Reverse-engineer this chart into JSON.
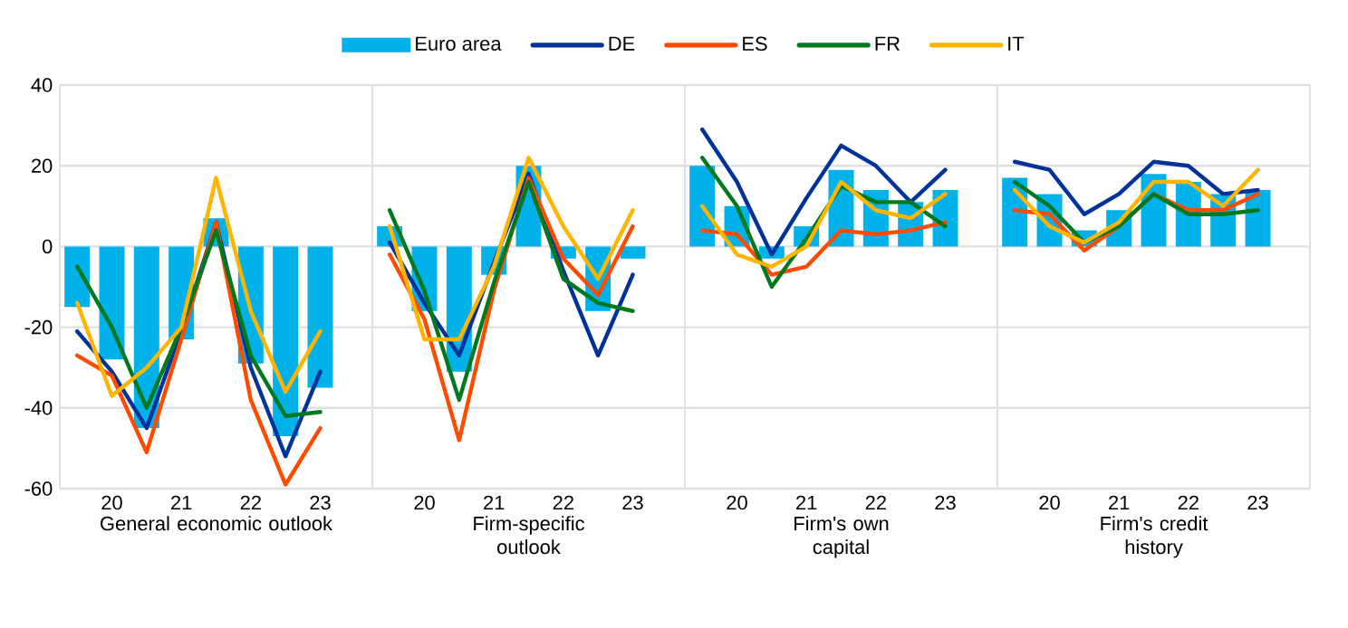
{
  "chart_data": [
    {
      "type": "bar",
      "categories": [
        null,
        "20",
        null,
        "21",
        null,
        "22",
        null,
        "23"
      ],
      "xlabel": "General economic outlook",
      "ylim": [
        -60,
        40
      ],
      "yticks": [
        -60,
        -40,
        -20,
        0,
        20,
        40
      ],
      "grid": "y",
      "legend": "top",
      "series": [
        {
          "name": "Euro area",
          "color": "#00b1ea",
          "values": [
            -15,
            -28,
            -45,
            -23,
            7,
            -29,
            -47,
            -35
          ]
        },
        {
          "name": "DE",
          "type": "line",
          "color": "#003299",
          "values": [
            -21,
            -31,
            -45,
            -21,
            6,
            -30,
            -52,
            -31
          ]
        },
        {
          "name": "ES",
          "type": "line",
          "color": "#ff4b00",
          "values": [
            -27,
            -32,
            -51,
            -23,
            6,
            -38,
            -59,
            -45
          ]
        },
        {
          "name": "FR",
          "type": "line",
          "color": "#00781e",
          "values": [
            -5,
            -20,
            -40,
            -20,
            4,
            -27,
            -42,
            -41
          ]
        },
        {
          "name": "IT",
          "type": "line",
          "color": "#ffb400",
          "values": [
            -14,
            -37,
            -30,
            -20,
            17,
            -16,
            -36,
            -21
          ]
        }
      ]
    },
    {
      "type": "bar",
      "categories": [
        null,
        "20",
        null,
        "21",
        null,
        "22",
        null,
        "23"
      ],
      "xlabel": "Firm-specific outlook",
      "ylim": [
        -60,
        40
      ],
      "yticks": [
        -60,
        -40,
        -20,
        0,
        20,
        40
      ],
      "grid": "y",
      "tick_labels": "x",
      "series": [
        {
          "color": "#00b1ea",
          "values": [
            5,
            -16,
            -31,
            -7,
            20,
            -3,
            -16,
            -3
          ]
        },
        {
          "type": "line",
          "color": "#003299",
          "values": [
            1,
            -14,
            -27,
            -4,
            18,
            -6,
            -27,
            -7
          ]
        },
        {
          "type": "line",
          "color": "#ff4b00",
          "values": [
            -2,
            -18,
            -48,
            -11,
            17,
            -3,
            -12,
            5
          ]
        },
        {
          "type": "line",
          "color": "#00781e",
          "values": [
            9,
            -11,
            -38,
            -9,
            16,
            -8,
            -14,
            -16
          ]
        },
        {
          "type": "line",
          "color": "#ffb400",
          "values": [
            5,
            -23,
            -23,
            -5,
            22,
            5,
            -8,
            9
          ]
        }
      ]
    },
    {
      "type": "bar",
      "categories": [
        null,
        "20",
        null,
        "21",
        null,
        "22",
        null,
        "23"
      ],
      "xlabel": "Firm's own capital",
      "ylim": [
        -60,
        40
      ],
      "yticks": [
        -60,
        -40,
        -20,
        0,
        20,
        40
      ],
      "grid": "y",
      "tick_labels": "x",
      "series": [
        {
          "color": "#00b1ea",
          "values": [
            20,
            10,
            -3,
            5,
            19,
            14,
            11,
            14
          ]
        },
        {
          "type": "line",
          "color": "#003299",
          "values": [
            29,
            16,
            -2,
            12,
            25,
            20,
            11,
            19
          ]
        },
        {
          "type": "line",
          "color": "#ff4b00",
          "values": [
            4,
            3,
            -7,
            -5,
            4,
            3,
            4,
            6
          ]
        },
        {
          "type": "line",
          "color": "#00781e",
          "values": [
            22,
            10,
            -10,
            2,
            15,
            11,
            11,
            5
          ]
        },
        {
          "type": "line",
          "color": "#ffb400",
          "values": [
            10,
            -2,
            -5,
            0,
            16,
            9,
            7,
            13
          ]
        }
      ]
    },
    {
      "type": "bar",
      "categories": [
        null,
        "20",
        null,
        "21",
        null,
        "22",
        null,
        "23"
      ],
      "xlabel": "Firm's credit history",
      "ylim": [
        -60,
        40
      ],
      "yticks": [
        -60,
        -40,
        -20,
        0,
        20,
        40
      ],
      "grid": "y",
      "tick_labels": "x",
      "series": [
        {
          "color": "#00b1ea",
          "values": [
            17,
            13,
            4,
            9,
            18,
            16,
            13,
            14
          ]
        },
        {
          "type": "line",
          "color": "#003299",
          "values": [
            21,
            19,
            8,
            13,
            21,
            20,
            13,
            14
          ]
        },
        {
          "type": "line",
          "color": "#ff4b00",
          "values": [
            9,
            8,
            -1,
            5,
            13,
            9,
            9,
            13
          ]
        },
        {
          "type": "line",
          "color": "#00781e",
          "values": [
            16,
            10,
            1,
            5,
            13,
            8,
            8,
            9
          ]
        },
        {
          "type": "line",
          "color": "#ffb400",
          "values": [
            14,
            5,
            1,
            6,
            16,
            16,
            10,
            19
          ]
        }
      ]
    }
  ]
}
